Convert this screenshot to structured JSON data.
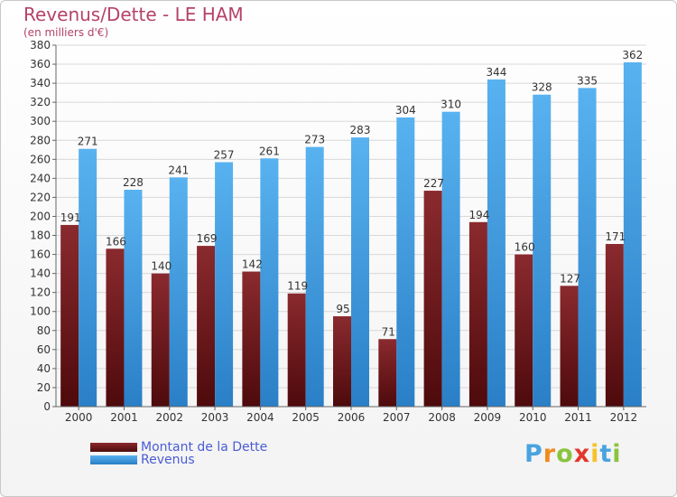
{
  "title": "Revenus/Dette - LE HAM",
  "subtitle": "(en milliers d'€)",
  "logo": "Proxiti",
  "colors": {
    "dette": "#7a1f23",
    "revenus": "#4aa6e8",
    "title": "#b5426a"
  },
  "chart_data": {
    "type": "bar",
    "title": "Revenus/Dette - LE HAM",
    "subtitle": "(en milliers d'€)",
    "xlabel": "",
    "ylabel": "",
    "categories": [
      "2000",
      "2001",
      "2002",
      "2003",
      "2004",
      "2005",
      "2006",
      "2007",
      "2008",
      "2009",
      "2010",
      "2011",
      "2012"
    ],
    "series": [
      {
        "name": "Montant de la Dette",
        "values": [
          191,
          166,
          140,
          169,
          142,
          119,
          95,
          71,
          227,
          194,
          160,
          127,
          171
        ]
      },
      {
        "name": "Revenus",
        "values": [
          271,
          228,
          241,
          257,
          261,
          273,
          283,
          304,
          310,
          344,
          328,
          335,
          362
        ]
      }
    ],
    "ylim": [
      0,
      380
    ],
    "yticks": [
      0,
      20,
      40,
      60,
      80,
      100,
      120,
      140,
      160,
      180,
      200,
      220,
      240,
      260,
      280,
      300,
      320,
      340,
      360,
      380
    ],
    "grid": true,
    "legend": "bottom-left"
  }
}
